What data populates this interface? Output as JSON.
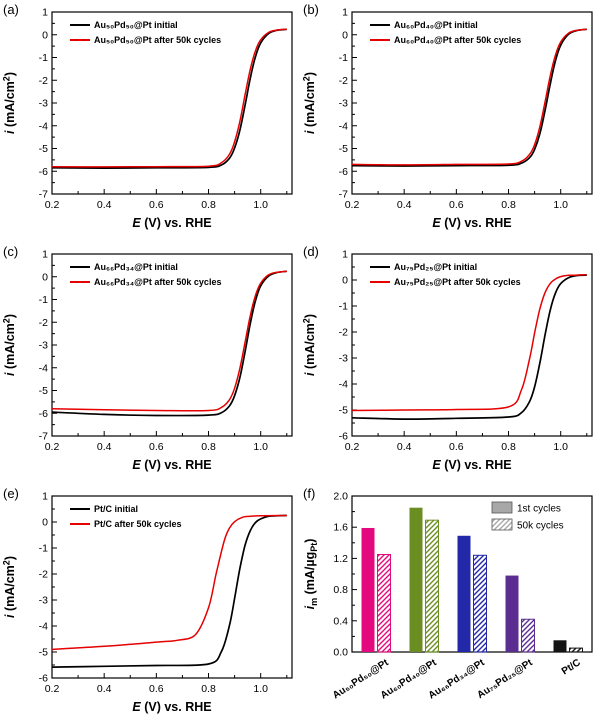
{
  "chart_data": [
    {
      "tag": "(a)",
      "type": "line",
      "xlabel": "E (V) vs. RHE",
      "ylabel": "i (mA/cm²)",
      "xlabel_parts": [
        {
          "t": "E",
          "it": true
        },
        {
          "t": " (V) vs. RHE"
        }
      ],
      "ylabel_parts": [
        {
          "t": "i",
          "it": true
        },
        {
          "t": " (mA/cm"
        },
        {
          "t": "2",
          "sup": true
        },
        {
          "t": ")"
        }
      ],
      "xlim": [
        0.2,
        1.12
      ],
      "ylim": [
        -7,
        1
      ],
      "xticks": [
        0.2,
        0.4,
        0.6,
        0.8,
        1.0
      ],
      "xtick_labels": [
        "0.2",
        "0.4",
        "0.6",
        "0.8",
        "1.0"
      ],
      "yticks": [
        1,
        0,
        -1,
        -2,
        -3,
        -4,
        -5,
        -6,
        -7
      ],
      "ytick_labels": [
        "1",
        "0",
        "-1",
        "-2",
        "-3",
        "-4",
        "-5",
        "-6",
        "-7"
      ],
      "series": [
        {
          "name": "Au₅₀Pd₅₀@Pt initial",
          "color": "#000000",
          "points": [
            [
              0.2,
              -5.85
            ],
            [
              0.4,
              -5.86
            ],
            [
              0.6,
              -5.85
            ],
            [
              0.8,
              -5.83
            ],
            [
              0.85,
              -5.72
            ],
            [
              0.88,
              -5.43
            ],
            [
              0.9,
              -4.98
            ],
            [
              0.92,
              -4.21
            ],
            [
              0.94,
              -3.11
            ],
            [
              0.96,
              -1.91
            ],
            [
              0.98,
              -0.96
            ],
            [
              1.0,
              -0.36
            ],
            [
              1.03,
              0.05
            ],
            [
              1.06,
              0.19
            ],
            [
              1.1,
              0.24
            ]
          ]
        },
        {
          "name": "Au₅₀Pd₅₀@Pt after 50k cycles",
          "color": "#e60000",
          "points": [
            [
              0.2,
              -5.8
            ],
            [
              0.4,
              -5.81
            ],
            [
              0.6,
              -5.8
            ],
            [
              0.8,
              -5.78
            ],
            [
              0.85,
              -5.62
            ],
            [
              0.88,
              -5.26
            ],
            [
              0.9,
              -4.71
            ],
            [
              0.92,
              -3.82
            ],
            [
              0.94,
              -2.65
            ],
            [
              0.96,
              -1.52
            ],
            [
              0.98,
              -0.7
            ],
            [
              1.0,
              -0.22
            ],
            [
              1.03,
              0.1
            ],
            [
              1.06,
              0.2
            ],
            [
              1.1,
              0.24
            ]
          ]
        }
      ]
    },
    {
      "tag": "(b)",
      "type": "line",
      "xlabel": "E (V) vs. RHE",
      "ylabel": "i (mA/cm²)",
      "xlabel_parts": [
        {
          "t": "E",
          "it": true
        },
        {
          "t": " (V) vs. RHE"
        }
      ],
      "ylabel_parts": [
        {
          "t": "i",
          "it": true
        },
        {
          "t": " (mA/cm"
        },
        {
          "t": "2",
          "sup": true
        },
        {
          "t": ")"
        }
      ],
      "xlim": [
        0.2,
        1.12
      ],
      "ylim": [
        -7,
        1
      ],
      "xticks": [
        0.2,
        0.4,
        0.6,
        0.8,
        1.0
      ],
      "xtick_labels": [
        "0.2",
        "0.4",
        "0.6",
        "0.8",
        "1.0"
      ],
      "yticks": [
        1,
        0,
        -1,
        -2,
        -3,
        -4,
        -5,
        -6,
        -7
      ],
      "ytick_labels": [
        "1",
        "0",
        "-1",
        "-2",
        "-3",
        "-4",
        "-5",
        "-6",
        "-7"
      ],
      "series": [
        {
          "name": "Au₆₀Pd₄₀@Pt initial",
          "color": "#000000",
          "points": [
            [
              0.2,
              -5.75
            ],
            [
              0.4,
              -5.77
            ],
            [
              0.6,
              -5.75
            ],
            [
              0.8,
              -5.74
            ],
            [
              0.85,
              -5.64
            ],
            [
              0.88,
              -5.41
            ],
            [
              0.9,
              -5.04
            ],
            [
              0.92,
              -4.36
            ],
            [
              0.94,
              -3.34
            ],
            [
              0.96,
              -2.16
            ],
            [
              0.98,
              -1.14
            ],
            [
              1.0,
              -0.46
            ],
            [
              1.03,
              0.02
            ],
            [
              1.06,
              0.18
            ],
            [
              1.1,
              0.24
            ]
          ]
        },
        {
          "name": "Au₆₀Pd₄₀@Pt after 50k cycles",
          "color": "#e60000",
          "points": [
            [
              0.2,
              -5.7
            ],
            [
              0.4,
              -5.72
            ],
            [
              0.6,
              -5.7
            ],
            [
              0.8,
              -5.68
            ],
            [
              0.85,
              -5.56
            ],
            [
              0.88,
              -5.27
            ],
            [
              0.9,
              -4.83
            ],
            [
              0.92,
              -4.05
            ],
            [
              0.94,
              -2.96
            ],
            [
              0.96,
              -1.8
            ],
            [
              0.98,
              -0.89
            ],
            [
              1.0,
              -0.32
            ],
            [
              1.03,
              0.07
            ],
            [
              1.06,
              0.19
            ],
            [
              1.1,
              0.24
            ]
          ]
        }
      ]
    },
    {
      "tag": "(c)",
      "type": "line",
      "xlabel": "E (V) vs. RHE",
      "ylabel": "i (mA/cm²)",
      "xlabel_parts": [
        {
          "t": "E",
          "it": true
        },
        {
          "t": " (V) vs. RHE"
        }
      ],
      "ylabel_parts": [
        {
          "t": "i",
          "it": true
        },
        {
          "t": " (mA/cm"
        },
        {
          "t": "2",
          "sup": true
        },
        {
          "t": ")"
        }
      ],
      "xlim": [
        0.2,
        1.12
      ],
      "ylim": [
        -7,
        1
      ],
      "xticks": [
        0.2,
        0.4,
        0.6,
        0.8,
        1.0
      ],
      "xtick_labels": [
        "0.2",
        "0.4",
        "0.6",
        "0.8",
        "1.0"
      ],
      "yticks": [
        1,
        0,
        -1,
        -2,
        -3,
        -4,
        -5,
        -6,
        -7
      ],
      "ytick_labels": [
        "1",
        "0",
        "-1",
        "-2",
        "-3",
        "-4",
        "-5",
        "-6",
        "-7"
      ],
      "series": [
        {
          "name": "Au₆₆Pd₃₄@Pt initial",
          "color": "#000000",
          "points": [
            [
              0.2,
              -5.95
            ],
            [
              0.4,
              -6.05
            ],
            [
              0.6,
              -6.1
            ],
            [
              0.8,
              -6.08
            ],
            [
              0.85,
              -5.97
            ],
            [
              0.88,
              -5.68
            ],
            [
              0.9,
              -5.23
            ],
            [
              0.92,
              -4.44
            ],
            [
              0.94,
              -3.31
            ],
            [
              0.96,
              -2.06
            ],
            [
              0.98,
              -1.05
            ],
            [
              1.0,
              -0.4
            ],
            [
              1.03,
              0.03
            ],
            [
              1.06,
              0.18
            ],
            [
              1.1,
              0.24
            ]
          ]
        },
        {
          "name": "Au₆₆Pd₃₄@Pt after 50k cycles",
          "color": "#e60000",
          "points": [
            [
              0.2,
              -5.8
            ],
            [
              0.4,
              -5.85
            ],
            [
              0.6,
              -5.88
            ],
            [
              0.8,
              -5.88
            ],
            [
              0.85,
              -5.74
            ],
            [
              0.88,
              -5.41
            ],
            [
              0.9,
              -4.9
            ],
            [
              0.92,
              -4.04
            ],
            [
              0.94,
              -2.89
            ],
            [
              0.96,
              -1.71
            ],
            [
              0.98,
              -0.82
            ],
            [
              1.0,
              -0.28
            ],
            [
              1.03,
              0.08
            ],
            [
              1.06,
              0.19
            ],
            [
              1.1,
              0.24
            ]
          ]
        }
      ]
    },
    {
      "tag": "(d)",
      "type": "line",
      "xlabel": "E (V) vs. RHE",
      "ylabel": "i (mA/cm²)",
      "xlabel_parts": [
        {
          "t": "E",
          "it": true
        },
        {
          "t": " (V) vs. RHE"
        }
      ],
      "ylabel_parts": [
        {
          "t": "i",
          "it": true
        },
        {
          "t": " (mA/cm"
        },
        {
          "t": "2",
          "sup": true
        },
        {
          "t": ")"
        }
      ],
      "xlim": [
        0.2,
        1.12
      ],
      "ylim": [
        -6,
        1
      ],
      "xticks": [
        0.2,
        0.4,
        0.6,
        0.8,
        1.0
      ],
      "xtick_labels": [
        "0.2",
        "0.4",
        "0.6",
        "0.8",
        "1.0"
      ],
      "yticks": [
        1,
        0,
        -1,
        -2,
        -3,
        -4,
        -5,
        -6
      ],
      "ytick_labels": [
        "1",
        "0",
        "-1",
        "-2",
        "-3",
        "-4",
        "-5",
        "-6"
      ],
      "series": [
        {
          "name": "Au₇₅Pd₂₅@Pt initial",
          "color": "#000000",
          "points": [
            [
              0.2,
              -5.3
            ],
            [
              0.4,
              -5.35
            ],
            [
              0.6,
              -5.32
            ],
            [
              0.8,
              -5.27
            ],
            [
              0.85,
              -5.1
            ],
            [
              0.88,
              -4.69
            ],
            [
              0.9,
              -4.11
            ],
            [
              0.92,
              -3.2
            ],
            [
              0.94,
              -2.12
            ],
            [
              0.96,
              -1.15
            ],
            [
              0.98,
              -0.5
            ],
            [
              1.0,
              -0.14
            ],
            [
              1.03,
              0.09
            ],
            [
              1.06,
              0.17
            ],
            [
              1.1,
              0.19
            ]
          ]
        },
        {
          "name": "Au₇₅Pd₂₅@Pt after 50k cycles",
          "color": "#e60000",
          "points": [
            [
              0.2,
              -5.02
            ],
            [
              0.4,
              -5.0
            ],
            [
              0.6,
              -4.98
            ],
            [
              0.8,
              -4.88
            ],
            [
              0.85,
              -4.21
            ],
            [
              0.88,
              -3.06
            ],
            [
              0.9,
              -2.04
            ],
            [
              0.92,
              -1.12
            ],
            [
              0.94,
              -0.49
            ],
            [
              0.96,
              -0.13
            ],
            [
              0.98,
              0.04
            ],
            [
              1.0,
              0.13
            ],
            [
              1.03,
              0.18
            ],
            [
              1.06,
              0.19
            ],
            [
              1.1,
              0.2
            ]
          ]
        }
      ]
    },
    {
      "tag": "(e)",
      "type": "line",
      "xlabel": "E (V) vs. RHE",
      "ylabel": "i (mA/cm²)",
      "xlabel_parts": [
        {
          "t": "E",
          "it": true
        },
        {
          "t": " (V) vs. RHE"
        }
      ],
      "ylabel_parts": [
        {
          "t": "i",
          "it": true
        },
        {
          "t": " (mA/cm"
        },
        {
          "t": "2",
          "sup": true
        },
        {
          "t": ")"
        }
      ],
      "xlim": [
        0.2,
        1.12
      ],
      "ylim": [
        -6,
        1
      ],
      "xticks": [
        0.2,
        0.4,
        0.6,
        0.8,
        1.0
      ],
      "xtick_labels": [
        "0.2",
        "0.4",
        "0.6",
        "0.8",
        "1.0"
      ],
      "yticks": [
        1,
        0,
        -1,
        -2,
        -3,
        -4,
        -5,
        -6
      ],
      "ytick_labels": [
        "1",
        "0",
        "-1",
        "-2",
        "-3",
        "-4",
        "-5",
        "-6"
      ],
      "series": [
        {
          "name": "Pt/C initial",
          "color": "#000000",
          "points": [
            [
              0.2,
              -5.58
            ],
            [
              0.4,
              -5.55
            ],
            [
              0.6,
              -5.52
            ],
            [
              0.8,
              -5.46
            ],
            [
              0.85,
              -4.97
            ],
            [
              0.88,
              -3.99
            ],
            [
              0.9,
              -2.94
            ],
            [
              0.92,
              -1.8
            ],
            [
              0.94,
              -0.9
            ],
            [
              0.96,
              -0.33
            ],
            [
              0.98,
              -0.02
            ],
            [
              1.0,
              0.12
            ],
            [
              1.03,
              0.22
            ],
            [
              1.06,
              0.24
            ],
            [
              1.1,
              0.25
            ]
          ]
        },
        {
          "name": "Pt/C after 50k cycles",
          "color": "#e60000",
          "points": [
            [
              0.2,
              -4.9
            ],
            [
              0.4,
              -4.78
            ],
            [
              0.6,
              -4.62
            ],
            [
              0.68,
              -4.55
            ],
            [
              0.75,
              -4.33
            ],
            [
              0.8,
              -3.3
            ],
            [
              0.83,
              -1.96
            ],
            [
              0.86,
              -0.73
            ],
            [
              0.88,
              -0.24
            ],
            [
              0.9,
              0.01
            ],
            [
              0.93,
              0.18
            ],
            [
              0.96,
              0.22
            ],
            [
              1.0,
              0.24
            ],
            [
              1.1,
              0.25
            ]
          ]
        }
      ]
    },
    {
      "tag": "(f)",
      "type": "bar",
      "ylabel": "iₘ (mA/µgPt)",
      "ylabel_parts": [
        {
          "t": "i",
          "it": true
        },
        {
          "t": "m",
          "sub": true
        },
        {
          "t": " (mA/µg"
        },
        {
          "t": "Pt",
          "sub": true
        },
        {
          "t": ")"
        }
      ],
      "ylim": [
        0,
        2.0
      ],
      "yticks": [
        0.0,
        0.4,
        0.8,
        1.2,
        1.6,
        2.0
      ],
      "ytick_labels": [
        "0.0",
        "0.4",
        "0.8",
        "1.2",
        "1.6",
        "2.0"
      ],
      "categories": [
        "Au₅₀Pd₅₀@Pt",
        "Au₆₀Pd₄₀@Pt",
        "Au₆₆Pd₃₄@Pt",
        "Au₇₅Pd₂₅@Pt",
        "Pt/C"
      ],
      "bar_colors": [
        "#e5097f",
        "#6b8e23",
        "#2328a8",
        "#5c2d91",
        "#141414"
      ],
      "series": [
        {
          "name": "1st cycles",
          "style": "solid",
          "values": [
            1.59,
            1.85,
            1.49,
            0.98,
            0.15
          ]
        },
        {
          "name": "50k cycles",
          "style": "hatched",
          "values": [
            1.25,
            1.69,
            1.24,
            0.42,
            0.05
          ]
        }
      ],
      "legend": {
        "position": "top-right",
        "items": [
          {
            "label": "1st cycles",
            "style": "solid",
            "fill": "#a8a8a8"
          },
          {
            "label": "50k cycles",
            "style": "hatched",
            "fill": "#a8a8a8"
          }
        ]
      }
    }
  ]
}
